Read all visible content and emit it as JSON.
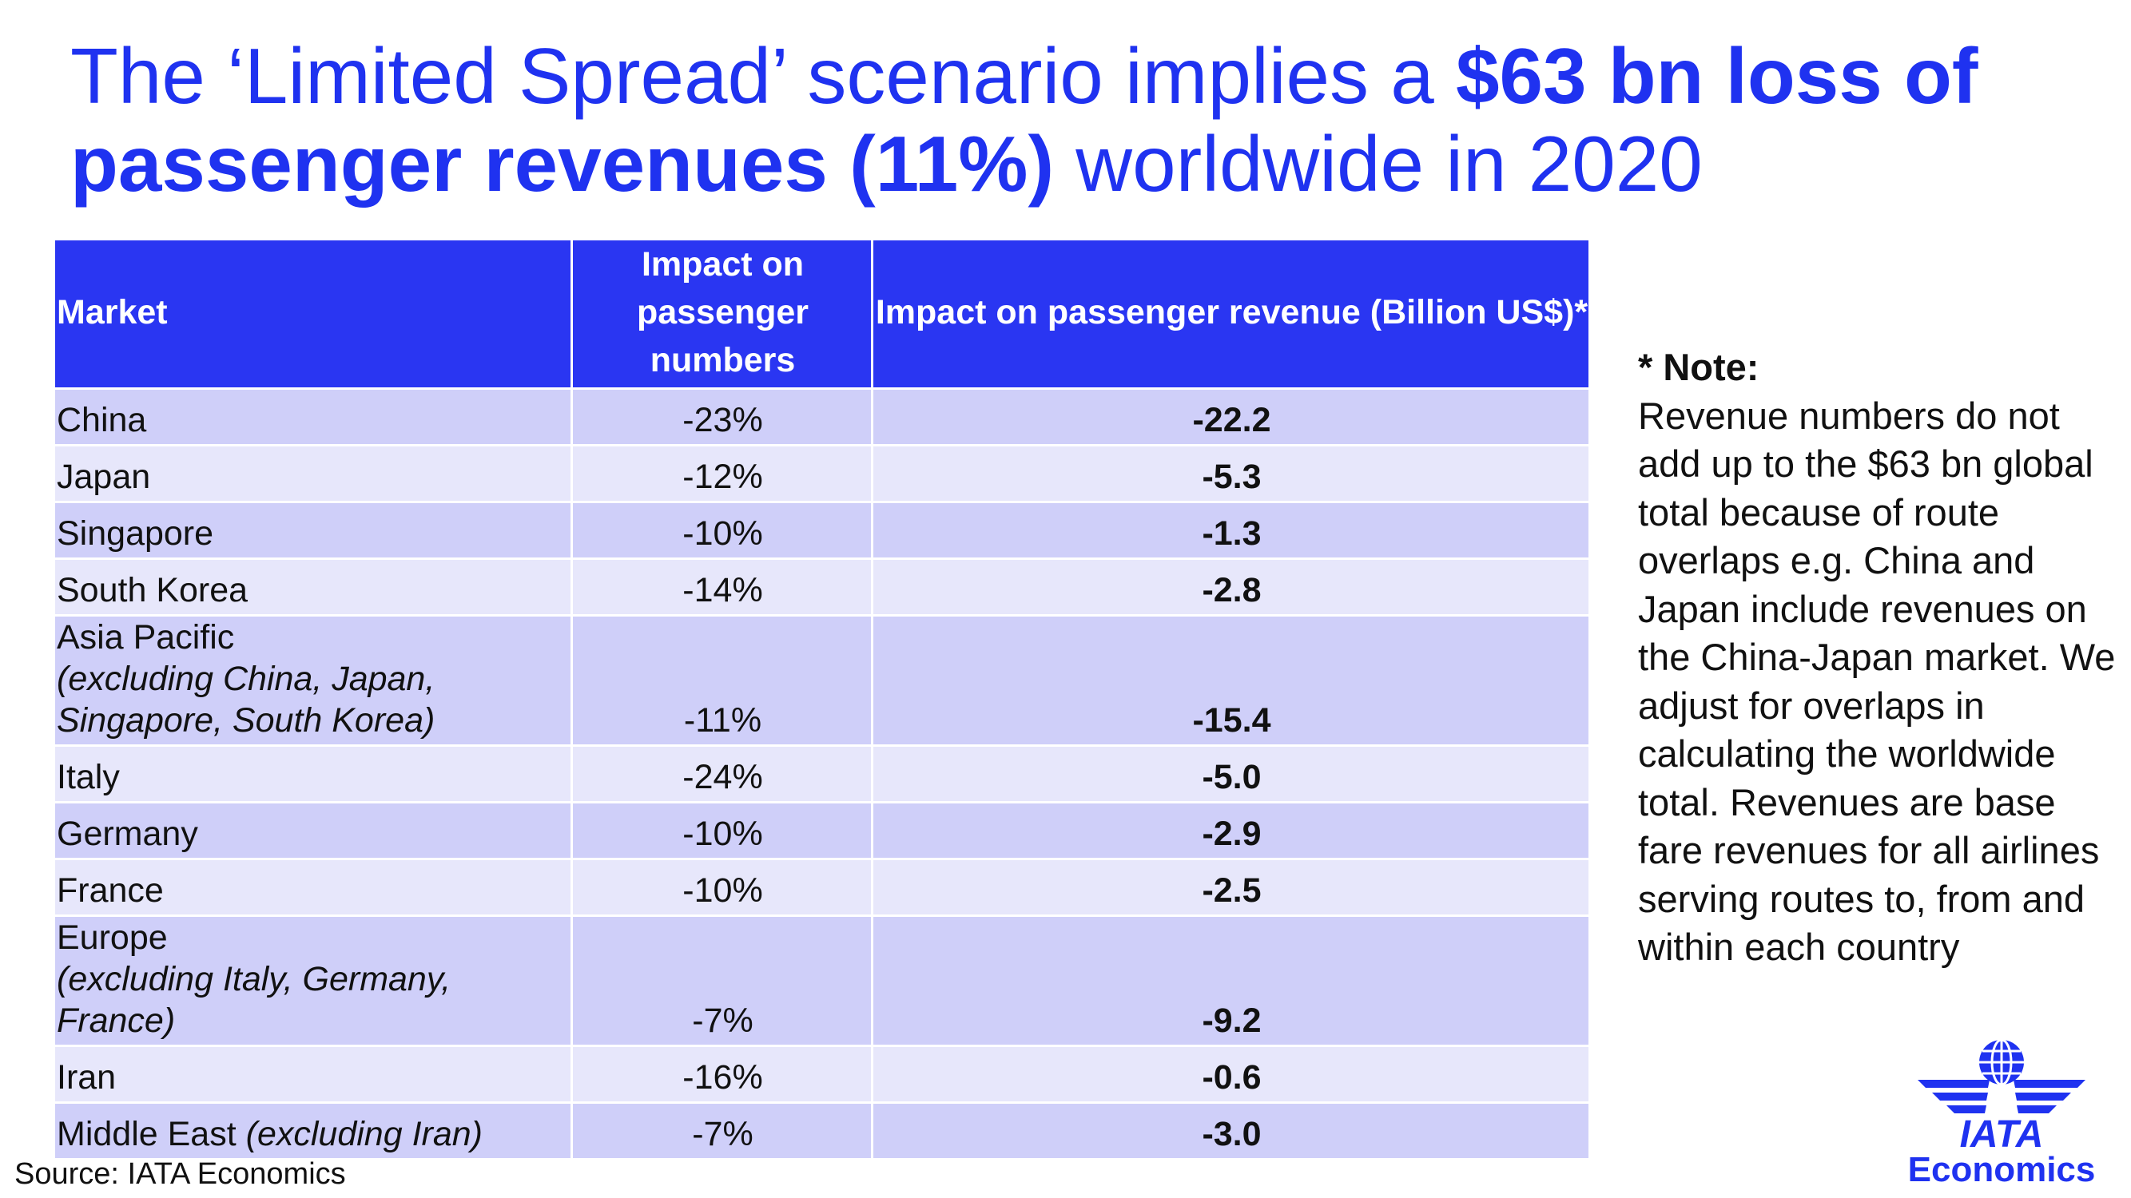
{
  "title": {
    "part1": "The ‘Limited Spread’ scenario implies a ",
    "part2_bold": "$63 bn loss of passenger revenues (11%)",
    "part3": " worldwide in 2020"
  },
  "table": {
    "headers": {
      "market": "Market",
      "numbers": "Impact on passenger numbers",
      "revenue": "Impact on passenger revenue (Billion US$)*"
    },
    "rows": [
      {
        "market": "China",
        "sub": "",
        "numbers": "-23%",
        "revenue": "-22.2"
      },
      {
        "market": "Japan",
        "sub": "",
        "numbers": "-12%",
        "revenue": "-5.3"
      },
      {
        "market": "Singapore",
        "sub": "",
        "numbers": "-10%",
        "revenue": "-1.3"
      },
      {
        "market": "South Korea",
        "sub": "",
        "numbers": "-14%",
        "revenue": "-2.8"
      },
      {
        "market": "Asia Pacific",
        "sub": "(excluding China, Japan, Singapore, South Korea)",
        "numbers": "-11%",
        "revenue": "-15.4"
      },
      {
        "market": "Italy",
        "sub": "",
        "numbers": "-24%",
        "revenue": "-5.0"
      },
      {
        "market": "Germany",
        "sub": "",
        "numbers": "-10%",
        "revenue": "-2.9"
      },
      {
        "market": "France",
        "sub": "",
        "numbers": "-10%",
        "revenue": "-2.5"
      },
      {
        "market": "Europe",
        "sub": "(excluding Italy, Germany, France)",
        "numbers": "-7%",
        "revenue": "-9.2"
      },
      {
        "market": "Iran",
        "sub": "",
        "numbers": "-16%",
        "revenue": "-0.6"
      },
      {
        "market": "Middle East",
        "sub": "(excluding Iran)",
        "numbers": "-7%",
        "revenue": "-3.0"
      }
    ]
  },
  "note": {
    "heading": "* Note:",
    "body": "Revenue numbers do not add up to the $63 bn global total because of route overlaps e.g. China and Japan include revenues on the China-Japan market. We adjust for overlaps in calculating the worldwide total. Revenues are base fare revenues for all airlines serving routes to, from and within each country"
  },
  "source": "Source: IATA Economics",
  "logo": {
    "wordmark": "IATA",
    "subtitle": "Economics",
    "icon": "iata-globe-wings-icon",
    "color": "#1f32f0"
  },
  "colors": {
    "title": "#1f32f0",
    "header_bg": "#2a36f2",
    "row_dark": "#cfcff9",
    "row_light": "#e7e7fb"
  }
}
